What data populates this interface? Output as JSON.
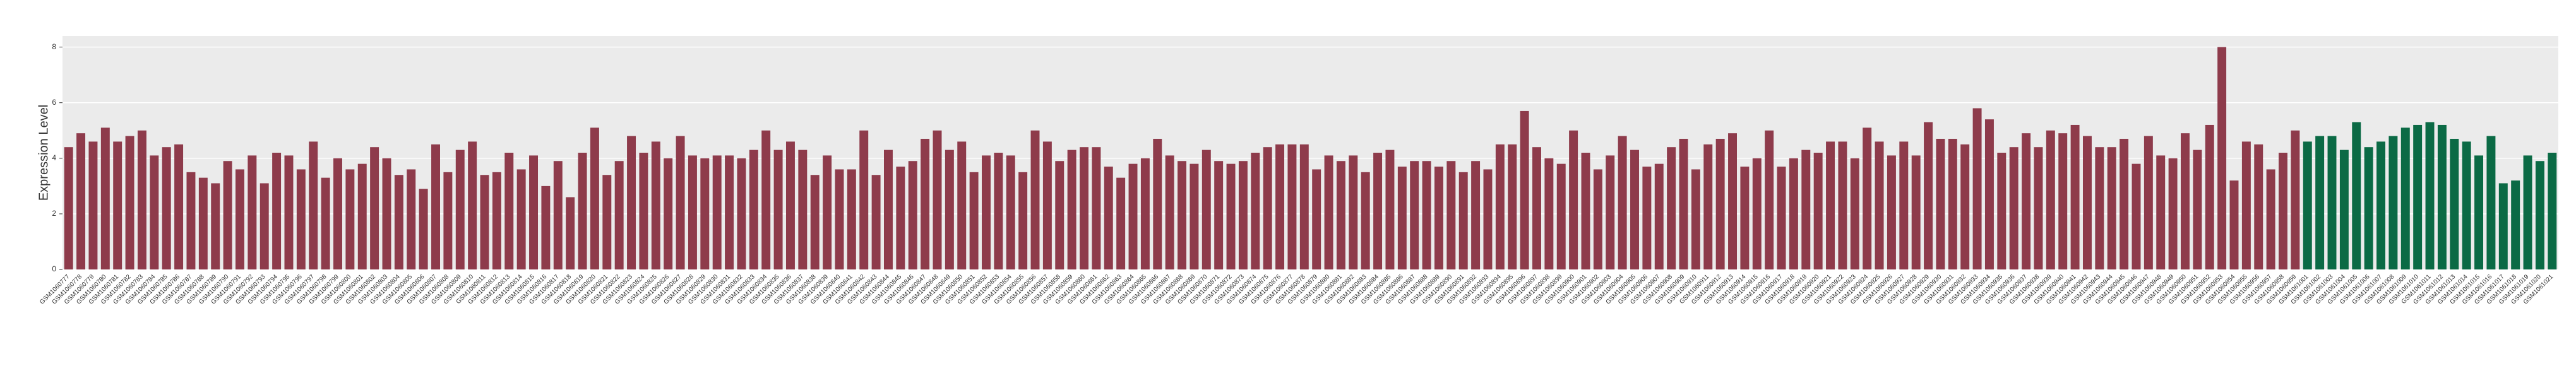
{
  "chart_data": {
    "type": "bar",
    "y_label": "Expression Level",
    "ylim": [
      0,
      8.4
    ],
    "yticks": [
      0,
      2,
      4,
      6,
      8
    ],
    "grid": true,
    "series": [
      {
        "color": "#8e3b4b",
        "categories": [
          "GSM1060777",
          "GSM1060778",
          "GSM1060779",
          "GSM1060780",
          "GSM1060781",
          "GSM1060782",
          "GSM1060783",
          "GSM1060784",
          "GSM1060785",
          "GSM1060786",
          "GSM1060787",
          "GSM1060788",
          "GSM1060789",
          "GSM1060790",
          "GSM1060791",
          "GSM1060792",
          "GSM1060793",
          "GSM1060794",
          "GSM1060795",
          "GSM1060796",
          "GSM1060797",
          "GSM1060798",
          "GSM1060799",
          "GSM1060800",
          "GSM1060801",
          "GSM1060802",
          "GSM1060803",
          "GSM1060804",
          "GSM1060805",
          "GSM1060806",
          "GSM1060807",
          "GSM1060808",
          "GSM1060809",
          "GSM1060810",
          "GSM1060811",
          "GSM1060812",
          "GSM1060813",
          "GSM1060814",
          "GSM1060815",
          "GSM1060816",
          "GSM1060817",
          "GSM1060818",
          "GSM1060819",
          "GSM1060820",
          "GSM1060821",
          "GSM1060822",
          "GSM1060823",
          "GSM1060824",
          "GSM1060825",
          "GSM1060826",
          "GSM1060827",
          "GSM1060828",
          "GSM1060829",
          "GSM1060830",
          "GSM1060831",
          "GSM1060832",
          "GSM1060833",
          "GSM1060834",
          "GSM1060835",
          "GSM1060836",
          "GSM1060837",
          "GSM1060838",
          "GSM1060839",
          "GSM1060840",
          "GSM1060841",
          "GSM1060842",
          "GSM1060843",
          "GSM1060844",
          "GSM1060845",
          "GSM1060846",
          "GSM1060847",
          "GSM1060848",
          "GSM1060849",
          "GSM1060850",
          "GSM1060851",
          "GSM1060852",
          "GSM1060853",
          "GSM1060854",
          "GSM1060855",
          "GSM1060856",
          "GSM1060857",
          "GSM1060858",
          "GSM1060859",
          "GSM1060860",
          "GSM1060861",
          "GSM1060862",
          "GSM1060863",
          "GSM1060864",
          "GSM1060865",
          "GSM1060866",
          "GSM1060867",
          "GSM1060868",
          "GSM1060869",
          "GSM1060870",
          "GSM1060871",
          "GSM1060872",
          "GSM1060873",
          "GSM1060874",
          "GSM1060875",
          "GSM1060876",
          "GSM1060877",
          "GSM1060878",
          "GSM1060879",
          "GSM1060880",
          "GSM1060881",
          "GSM1060882",
          "GSM1060883",
          "GSM1060884",
          "GSM1060885",
          "GSM1060886",
          "GSM1060887",
          "GSM1060888",
          "GSM1060889",
          "GSM1060890",
          "GSM1060891",
          "GSM1060892",
          "GSM1060893",
          "GSM1060894",
          "GSM1060895",
          "GSM1060896",
          "GSM1060897",
          "GSM1060898",
          "GSM1060899",
          "GSM1060900",
          "GSM1060901",
          "GSM1060902",
          "GSM1060903",
          "GSM1060904",
          "GSM1060905",
          "GSM1060906",
          "GSM1060907",
          "GSM1060908",
          "GSM1060909",
          "GSM1060910",
          "GSM1060911",
          "GSM1060912",
          "GSM1060913",
          "GSM1060914",
          "GSM1060915",
          "GSM1060916",
          "GSM1060917",
          "GSM1060918",
          "GSM1060919",
          "GSM1060920",
          "GSM1060921",
          "GSM1060922",
          "GSM1060923",
          "GSM1060924",
          "GSM1060925",
          "GSM1060926",
          "GSM1060927",
          "GSM1060928",
          "GSM1060929",
          "GSM1060930",
          "GSM1060931",
          "GSM1060932",
          "GSM1060933",
          "GSM1060934",
          "GSM1060935",
          "GSM1060936",
          "GSM1060937",
          "GSM1060938",
          "GSM1060939",
          "GSM1060940",
          "GSM1060941",
          "GSM1060942",
          "GSM1060943",
          "GSM1060944",
          "GSM1060945",
          "GSM1060946",
          "GSM1060947",
          "GSM1060948",
          "GSM1060949",
          "GSM1060950",
          "GSM1060951",
          "GSM1060952",
          "GSM1060953",
          "GSM1060954",
          "GSM1060955",
          "GSM1060956",
          "GSM1060957",
          "GSM1060958",
          "GSM1060959"
        ],
        "values": [
          4.4,
          4.9,
          4.6,
          5.1,
          4.6,
          4.8,
          5.0,
          4.1,
          4.4,
          4.5,
          3.5,
          3.3,
          3.1,
          3.9,
          3.6,
          4.1,
          3.1,
          4.2,
          4.1,
          3.6,
          4.6,
          3.3,
          4.0,
          3.6,
          3.8,
          4.4,
          4.0,
          3.4,
          3.6,
          2.9,
          4.5,
          3.5,
          4.3,
          4.6,
          3.4,
          3.5,
          4.2,
          3.6,
          4.1,
          3.0,
          3.9,
          2.6,
          4.2,
          5.1,
          3.4,
          3.9,
          4.8,
          4.2,
          4.6,
          4.0,
          4.8,
          4.1,
          4.0,
          4.1,
          4.1,
          4.0,
          4.3,
          5.0,
          4.3,
          4.6,
          4.3,
          3.4,
          4.1,
          3.6,
          3.6,
          5.0,
          3.4,
          4.3,
          3.7,
          3.9,
          4.7,
          5.0,
          4.3,
          4.6,
          3.5,
          4.1,
          4.2,
          4.1,
          3.5,
          5.0,
          4.6,
          3.9,
          4.3,
          4.4,
          4.4,
          3.7,
          3.3,
          3.8,
          4.0,
          4.7,
          4.1,
          3.9,
          3.8,
          4.3,
          3.9,
          3.8,
          3.9,
          4.2,
          4.4,
          4.5,
          4.5,
          4.5,
          3.6,
          4.1,
          3.9,
          4.1,
          3.5,
          4.2,
          4.3,
          3.7,
          3.9,
          3.9,
          3.7,
          3.9,
          3.5,
          3.9,
          3.6,
          4.5,
          4.5,
          5.7,
          4.4,
          4.0,
          3.8,
          5.0,
          4.2,
          3.6,
          4.1,
          4.8,
          4.3,
          3.7,
          3.8,
          4.4,
          4.7,
          3.6,
          4.5,
          4.7,
          4.9,
          3.7,
          4.0,
          5.0,
          3.7,
          4.0,
          4.3,
          4.2,
          4.6,
          4.6,
          4.0,
          5.1,
          4.6,
          4.1,
          4.6,
          4.1,
          5.3,
          4.7,
          4.7,
          4.5,
          5.8,
          5.4,
          4.2,
          4.4,
          4.9,
          4.4,
          5.0,
          4.9,
          5.2,
          4.8,
          4.4,
          4.4,
          4.7,
          3.8,
          4.8,
          4.1,
          4.0,
          4.9,
          4.3,
          5.2,
          8.0,
          3.2,
          4.6,
          4.5,
          3.6,
          4.2,
          5.0
        ]
      },
      {
        "color": "#0b6a45",
        "categories": [
          "GSM1061001",
          "GSM1061002",
          "GSM1061003",
          "GSM1061004",
          "GSM1061005",
          "GSM1061006",
          "GSM1061007",
          "GSM1061008",
          "GSM1061009",
          "GSM1061010",
          "GSM1061011",
          "GSM1061012",
          "GSM1061013",
          "GSM1061014",
          "GSM1061015",
          "GSM1061016",
          "GSM1061017",
          "GSM1061018",
          "GSM1061019",
          "GSM1061020",
          "GSM1061021"
        ],
        "values": [
          4.6,
          4.8,
          4.8,
          4.3,
          5.3,
          4.4,
          4.6,
          4.8,
          5.1,
          5.2,
          5.3,
          5.2,
          4.7,
          4.6,
          4.1,
          4.8,
          3.1,
          3.2,
          4.1,
          3.9,
          4.2
        ]
      }
    ]
  }
}
